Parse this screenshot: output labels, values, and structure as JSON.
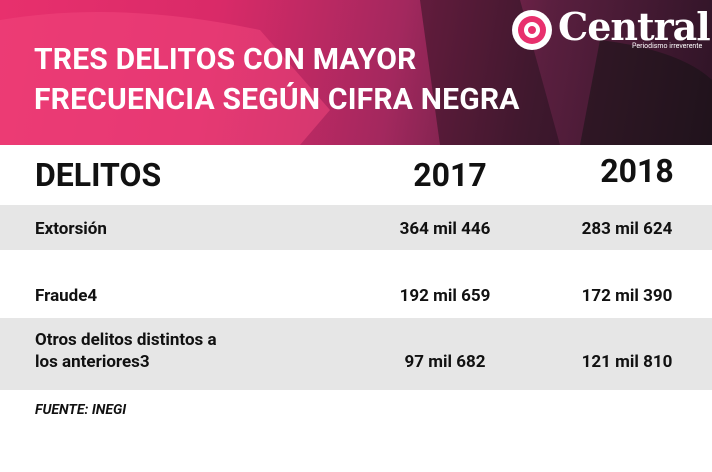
{
  "header": {
    "logo": "Central",
    "tagline": "Periodismo irreverente",
    "title": [
      "TRES DELITOS CON MAYOR",
      "FRECUENCIA SEGÚN CIFRA NEGRA"
    ]
  },
  "table": {
    "columns": [
      "DELITOS",
      "2017",
      "2018"
    ],
    "rows": [
      [
        "Extorsión",
        "364 mil 446",
        "283 mil 624"
      ],
      [
        "Fraude4",
        "192 mil 659",
        "172 mil 390"
      ],
      [
        "Otros delitos distintos a los anteriores3",
        "97 mil 682",
        "121 mil 810"
      ]
    ]
  },
  "source": "FUENTE: INEGI"
}
